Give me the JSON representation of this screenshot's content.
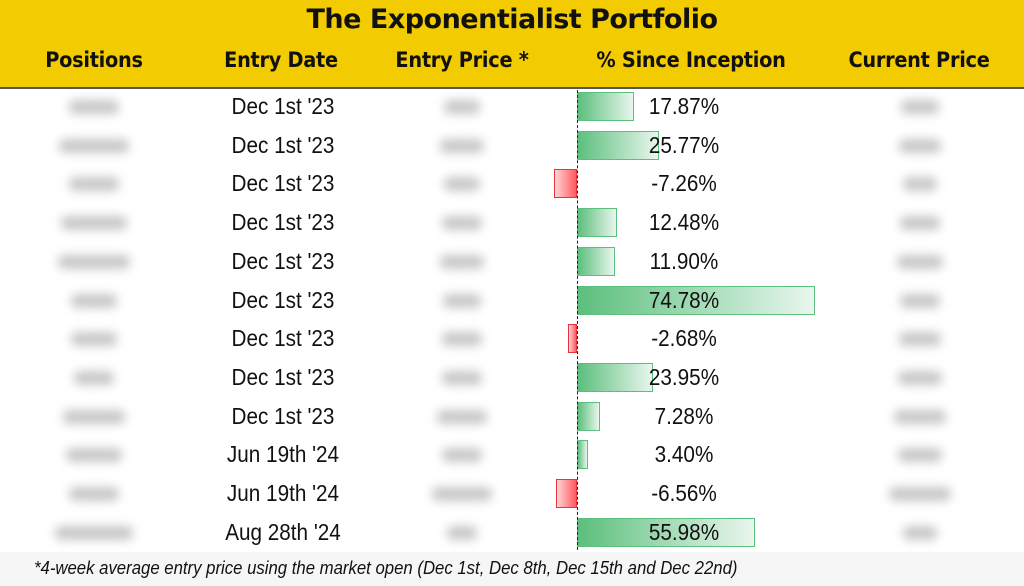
{
  "title": "The Exponentialist Portfolio",
  "columns": [
    "Positions",
    "Entry Date",
    "Entry Price *",
    "% Since Inception",
    "Current Price"
  ],
  "footnote": "*4-week average entry price using the market open (Dec 1st, Dec 8th, Dec 15th and Dec 22nd)",
  "colors": {
    "header_bg": "#f2cc00",
    "positive_bar": "#5cbf7d",
    "negative_bar": "#e8333a"
  },
  "chart_data": {
    "type": "table",
    "title": "The Exponentialist Portfolio",
    "bar_column": "% Since Inception",
    "rows": [
      {
        "entry_date": "Dec 1st '23",
        "pct": 17.87,
        "pct_label": "17.87%"
      },
      {
        "entry_date": "Dec 1st '23",
        "pct": 25.77,
        "pct_label": "25.77%"
      },
      {
        "entry_date": "Dec 1st '23",
        "pct": -7.26,
        "pct_label": "-7.26%"
      },
      {
        "entry_date": "Dec 1st '23",
        "pct": 12.48,
        "pct_label": "12.48%"
      },
      {
        "entry_date": "Dec 1st '23",
        "pct": 11.9,
        "pct_label": "11.90%"
      },
      {
        "entry_date": "Dec 1st '23",
        "pct": 74.78,
        "pct_label": "74.78%"
      },
      {
        "entry_date": "Dec 1st '23",
        "pct": -2.68,
        "pct_label": "-2.68%"
      },
      {
        "entry_date": "Dec 1st '23",
        "pct": 23.95,
        "pct_label": "23.95%"
      },
      {
        "entry_date": "Dec 1st '23",
        "pct": 7.28,
        "pct_label": "7.28%"
      },
      {
        "entry_date": "Jun 19th '24",
        "pct": 3.4,
        "pct_label": "3.40%"
      },
      {
        "entry_date": "Jun 19th '24",
        "pct": -6.56,
        "pct_label": "-6.56%"
      },
      {
        "entry_date": "Aug 28th '24",
        "pct": 55.98,
        "pct_label": "55.98%"
      }
    ],
    "positions_blurred": true,
    "prices_blurred": true
  }
}
